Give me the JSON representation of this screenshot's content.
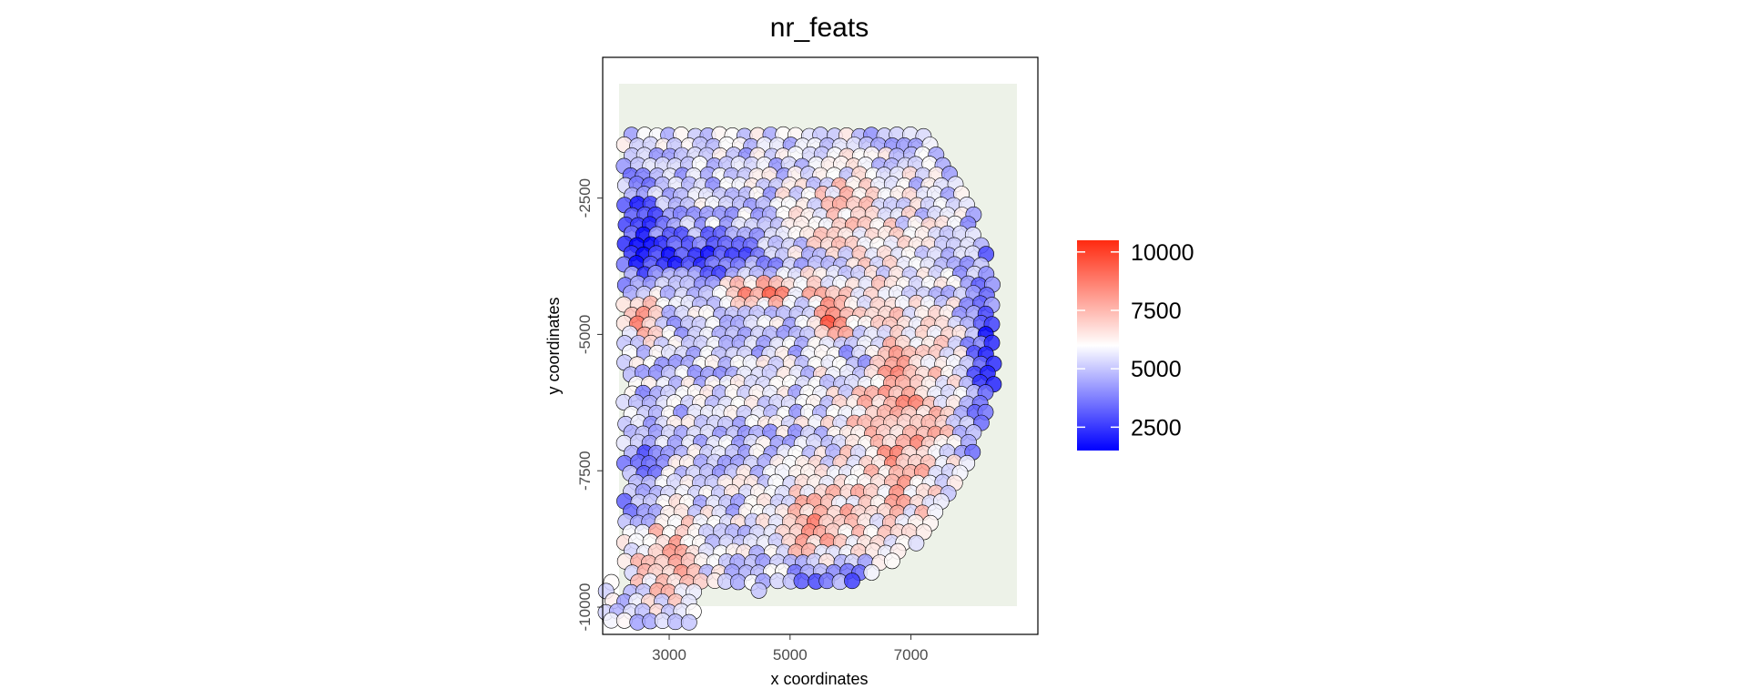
{
  "chart_data": {
    "type": "scatter",
    "title": "nr_feats",
    "xlabel": "x coordinates",
    "ylabel": "y coordinates",
    "xlim": [
      1900,
      9100
    ],
    "ylim": [
      -10500,
      80
    ],
    "x_ticks": [
      3000,
      5000,
      7000
    ],
    "y_ticks": [
      -2500,
      -5000,
      -7500,
      -10000
    ],
    "grid": false,
    "legend": {
      "position": "right",
      "type": "colorbar",
      "range": [
        1500,
        10500
      ],
      "ticks": [
        2500,
        5000,
        7500,
        10000
      ],
      "low_color": "#0000ff",
      "mid_color": "#ffffff",
      "high_color": "#ff2a10"
    },
    "marker": {
      "shape": "circle",
      "edge_color": "#000000"
    },
    "background": {
      "tissue_image": true,
      "color": "#edf2e8"
    },
    "series": [
      {
        "spot_spacing": 210,
        "points_note_value_field": "nr_feats"
      }
    ]
  }
}
